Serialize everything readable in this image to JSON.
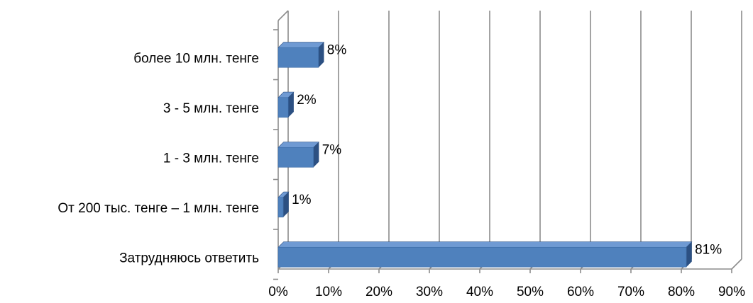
{
  "chart_data": {
    "type": "bar",
    "orientation": "horizontal",
    "style": "3d",
    "categories": [
      "более 10 млн. тенге",
      "3 - 5 млн. тенге",
      "1 - 3 млн. тенге",
      "От 200 тыс. тенге – 1 млн. тенге",
      "Затрудняюсь ответить"
    ],
    "values": [
      8,
      2,
      7,
      1,
      81
    ],
    "data_labels": [
      "8%",
      "2%",
      "7%",
      "1%",
      "81%"
    ],
    "x_ticks": [
      "0%",
      "10%",
      "20%",
      "30%",
      "40%",
      "50%",
      "60%",
      "70%",
      "80%",
      "90%"
    ],
    "xlim": [
      0,
      90
    ],
    "grid": true,
    "legend": "none",
    "colors": {
      "bar_front": "#4f81bd",
      "bar_top": "#6f9ad3",
      "bar_side": "#2c5082",
      "grid": "#8c8c8c"
    }
  }
}
